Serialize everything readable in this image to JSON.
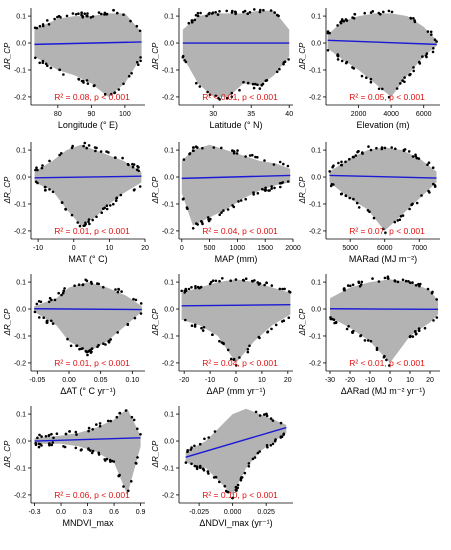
{
  "colors": {
    "cloud": "#b3b3b3",
    "points": "#000000",
    "fit": "#1a1ad6",
    "stats": "#e01010",
    "axis": "#000000"
  },
  "chart_data": [
    {
      "type": "scatter",
      "xlabel": "Longitude (° E)",
      "ylabel": "ΔR_CP",
      "xlim": [
        72,
        106
      ],
      "ylim": [
        -0.23,
        0.13
      ],
      "xticks": [
        "80",
        "90",
        "100"
      ],
      "xtick_values": [
        80,
        90,
        100
      ],
      "yticks": [
        "-0.2",
        "-0.1",
        "0.0",
        "0.1"
      ],
      "ytick_values": [
        -0.2,
        -0.1,
        0.0,
        0.1
      ],
      "fit_line": {
        "x": [
          73,
          105
        ],
        "y": [
          -0.005,
          0.004
        ]
      },
      "stat_r2": "R² = 0.08, p < 0.001",
      "envelope": {
        "x": [
          73,
          80,
          85,
          90,
          95,
          100,
          105
        ],
        "upper": [
          0.05,
          0.09,
          0.1,
          0.1,
          0.11,
          0.11,
          0.04
        ],
        "lower": [
          -0.05,
          -0.1,
          -0.12,
          -0.15,
          -0.2,
          -0.15,
          -0.05
        ]
      }
    },
    {
      "type": "scatter",
      "xlabel": "Latitude (° N)",
      "ylabel": "ΔR_CP",
      "xlim": [
        25.5,
        40.5
      ],
      "ylim": [
        -0.23,
        0.13
      ],
      "xticks": [
        "30",
        "35",
        "40"
      ],
      "xtick_values": [
        30,
        35,
        40
      ],
      "yticks": [
        "-0.2",
        "-0.1",
        "0.0",
        "0.1"
      ],
      "ytick_values": [
        -0.2,
        -0.1,
        0.0,
        0.1
      ],
      "fit_line": {
        "x": [
          26,
          40
        ],
        "y": [
          0.0,
          0.0
        ]
      },
      "stat_r2": "R² < 0.01, p < 0.001",
      "envelope": {
        "x": [
          26,
          28,
          30,
          32,
          34,
          36,
          38,
          40
        ],
        "upper": [
          0.05,
          0.1,
          0.11,
          0.11,
          0.11,
          0.12,
          0.12,
          0.05
        ],
        "lower": [
          -0.05,
          -0.15,
          -0.2,
          -0.2,
          -0.15,
          -0.16,
          -0.12,
          -0.05
        ]
      }
    },
    {
      "type": "scatter",
      "xlabel": "Elevation (m)",
      "ylabel": "ΔR_CP",
      "xlim": [
        0,
        7000
      ],
      "ylim": [
        -0.23,
        0.13
      ],
      "xticks": [
        "2000",
        "4000",
        "6000"
      ],
      "xtick_values": [
        2000,
        4000,
        6000
      ],
      "yticks": [
        "-0.2",
        "-0.1",
        "0.0",
        "0.1"
      ],
      "ytick_values": [
        -0.2,
        -0.1,
        0.0,
        0.1
      ],
      "fit_line": {
        "x": [
          100,
          6800
        ],
        "y": [
          0.01,
          -0.005
        ]
      },
      "stat_r2": "R² = 0.05, p < 0.001",
      "envelope": {
        "x": [
          100,
          1000,
          2000,
          3000,
          4000,
          5000,
          6000,
          6800
        ],
        "upper": [
          0.03,
          0.08,
          0.1,
          0.11,
          0.11,
          0.1,
          0.06,
          0.01
        ],
        "lower": [
          -0.02,
          -0.06,
          -0.1,
          -0.15,
          -0.2,
          -0.12,
          -0.05,
          -0.01
        ]
      }
    },
    {
      "type": "scatter",
      "xlabel": "MAT (° C)",
      "ylabel": "ΔR_CP",
      "xlim": [
        -12,
        20
      ],
      "ylim": [
        -0.23,
        0.13
      ],
      "xticks": [
        "-10",
        "0",
        "10",
        "20"
      ],
      "xtick_values": [
        -10,
        0,
        10,
        20
      ],
      "yticks": [
        "-0.2",
        "-0.1",
        "0.0",
        "0.1"
      ],
      "ytick_values": [
        -0.2,
        -0.1,
        0.0,
        0.1
      ],
      "fit_line": {
        "x": [
          -11,
          19
        ],
        "y": [
          -0.003,
          0.003
        ]
      },
      "stat_r2": "R² = 0.01, p < 0.001",
      "envelope": {
        "x": [
          -11,
          -6,
          -2,
          2,
          6,
          10,
          14,
          19
        ],
        "upper": [
          0.02,
          0.06,
          0.1,
          0.12,
          0.1,
          0.08,
          0.06,
          0.02
        ],
        "lower": [
          -0.02,
          -0.05,
          -0.12,
          -0.18,
          -0.15,
          -0.1,
          -0.06,
          -0.02
        ]
      }
    },
    {
      "type": "scatter",
      "xlabel": "MAP (mm)",
      "ylabel": "ΔR_CP",
      "xlim": [
        -50,
        2000
      ],
      "ylim": [
        -0.23,
        0.13
      ],
      "xticks": [
        "0",
        "500",
        "1000",
        "1500",
        "2000"
      ],
      "xtick_values": [
        0,
        500,
        1000,
        1500,
        2000
      ],
      "yticks": [
        "-0.2",
        "-0.1",
        "0.0",
        "0.1"
      ],
      "ytick_values": [
        -0.2,
        -0.1,
        0.0,
        0.1
      ],
      "fit_line": {
        "x": [
          0,
          1950
        ],
        "y": [
          -0.005,
          0.006
        ]
      },
      "stat_r2": "R² = 0.04, p < 0.001",
      "envelope": {
        "x": [
          0,
          200,
          500,
          800,
          1100,
          1400,
          1700,
          1950
        ],
        "upper": [
          0.06,
          0.1,
          0.12,
          0.1,
          0.08,
          0.06,
          0.05,
          0.03
        ],
        "lower": [
          -0.06,
          -0.18,
          -0.15,
          -0.12,
          -0.08,
          -0.05,
          -0.03,
          -0.02
        ]
      }
    },
    {
      "type": "scatter",
      "xlabel": "MARad (MJ m⁻²)",
      "ylabel": "ΔR_CP",
      "xlim": [
        4300,
        7600
      ],
      "ylim": [
        -0.23,
        0.13
      ],
      "xticks": [
        "5000",
        "6000",
        "7000"
      ],
      "xtick_values": [
        5000,
        6000,
        7000
      ],
      "yticks": [
        "-0.2",
        "-0.1",
        "0.0",
        "0.1"
      ],
      "ytick_values": [
        -0.2,
        -0.1,
        0.0,
        0.1
      ],
      "fit_line": {
        "x": [
          4400,
          7500
        ],
        "y": [
          0.006,
          -0.004
        ]
      },
      "stat_r2": "R² = 0.07, p < 0.001",
      "envelope": {
        "x": [
          4400,
          5000,
          5500,
          6000,
          6500,
          7000,
          7500
        ],
        "upper": [
          0.02,
          0.07,
          0.1,
          0.11,
          0.1,
          0.07,
          0.02
        ],
        "lower": [
          -0.02,
          -0.08,
          -0.12,
          -0.2,
          -0.14,
          -0.08,
          -0.02
        ]
      }
    },
    {
      "type": "scatter",
      "xlabel": "ΔAT (° C yr⁻¹)",
      "ylabel": "ΔR_CP",
      "xlim": [
        -0.06,
        0.12
      ],
      "ylim": [
        -0.23,
        0.13
      ],
      "xticks": [
        "-0.05",
        "0.00",
        "0.05",
        "0.10"
      ],
      "xtick_values": [
        -0.05,
        0.0,
        0.05,
        0.1
      ],
      "yticks": [
        "-0.2",
        "-0.1",
        "0.0",
        "0.1"
      ],
      "ytick_values": [
        -0.2,
        -0.1,
        0.0,
        0.1
      ],
      "fit_line": {
        "x": [
          -0.055,
          0.115
        ],
        "y": [
          0.001,
          -0.002
        ]
      },
      "stat_r2": "R² = 0.01, p < 0.001",
      "envelope": {
        "x": [
          -0.055,
          -0.02,
          0.0,
          0.03,
          0.06,
          0.09,
          0.115
        ],
        "upper": [
          0.01,
          0.04,
          0.08,
          0.1,
          0.08,
          0.05,
          0.01
        ],
        "lower": [
          -0.01,
          -0.06,
          -0.12,
          -0.16,
          -0.12,
          -0.06,
          -0.01
        ]
      }
    },
    {
      "type": "scatter",
      "xlabel": "ΔAP (mm yr⁻¹)",
      "ylabel": "ΔR_CP",
      "xlim": [
        -22,
        22
      ],
      "ylim": [
        -0.23,
        0.13
      ],
      "xticks": [
        "-20",
        "-10",
        "0",
        "10",
        "20"
      ],
      "xtick_values": [
        -20,
        -10,
        0,
        10,
        20
      ],
      "yticks": [
        "-0.2",
        "-0.1",
        "0.0",
        "0.1"
      ],
      "ytick_values": [
        -0.2,
        -0.1,
        0.0,
        0.1
      ],
      "fit_line": {
        "x": [
          -21,
          21
        ],
        "y": [
          0.012,
          0.016
        ]
      },
      "stat_r2": "R² = 0.04, p < 0.001",
      "envelope": {
        "x": [
          -21,
          -14,
          -7,
          0,
          7,
          14,
          21
        ],
        "upper": [
          0.06,
          0.08,
          0.1,
          0.11,
          0.1,
          0.08,
          0.06
        ],
        "lower": [
          -0.04,
          -0.06,
          -0.1,
          -0.2,
          -0.12,
          -0.06,
          -0.02
        ]
      }
    },
    {
      "type": "scatter",
      "xlabel": "ΔARad (MJ m⁻² yr⁻¹)",
      "ylabel": "ΔR_CP",
      "xlim": [
        -32,
        25
      ],
      "ylim": [
        -0.23,
        0.13
      ],
      "xticks": [
        "-30",
        "-20",
        "-10",
        "0",
        "10",
        "20"
      ],
      "xtick_values": [
        -30,
        -20,
        -10,
        0,
        10,
        20
      ],
      "yticks": [
        "-0.2",
        "-0.1",
        "0.0",
        "0.1"
      ],
      "ytick_values": [
        -0.2,
        -0.1,
        0.0,
        0.1
      ],
      "fit_line": {
        "x": [
          -30,
          24
        ],
        "y": [
          0.001,
          -0.001
        ]
      },
      "stat_r2": "R² < 0.01, p < 0.001",
      "envelope": {
        "x": [
          -30,
          -20,
          -10,
          0,
          10,
          20,
          24
        ],
        "upper": [
          0.04,
          0.08,
          0.1,
          0.11,
          0.1,
          0.07,
          0.03
        ],
        "lower": [
          -0.03,
          -0.07,
          -0.12,
          -0.2,
          -0.1,
          -0.05,
          -0.02
        ]
      }
    },
    {
      "type": "scatter",
      "xlabel": "MNDVI_max",
      "ylabel": "ΔR_CP",
      "xlim": [
        -0.34,
        0.95
      ],
      "ylim": [
        -0.23,
        0.13
      ],
      "xticks": [
        "-0.3",
        "0.0",
        "0.3",
        "0.6",
        "0.9"
      ],
      "xtick_values": [
        -0.3,
        0.0,
        0.3,
        0.6,
        0.9
      ],
      "yticks": [
        "-0.2",
        "-0.1",
        "0.0",
        "0.1"
      ],
      "ytick_values": [
        -0.2,
        -0.1,
        0.0,
        0.1
      ],
      "fit_line": {
        "x": [
          -0.3,
          0.9
        ],
        "y": [
          0.0,
          0.012
        ]
      },
      "stat_r2": "R² = 0.06, p < 0.001",
      "envelope": {
        "x": [
          -0.3,
          0.0,
          0.2,
          0.4,
          0.6,
          0.75,
          0.9
        ],
        "upper": [
          0.01,
          0.02,
          0.03,
          0.05,
          0.08,
          0.12,
          0.02
        ],
        "lower": [
          -0.01,
          -0.01,
          -0.02,
          -0.04,
          -0.08,
          -0.2,
          -0.02
        ]
      }
    },
    {
      "type": "scatter",
      "xlabel": "ΔNDVI_max (yr⁻¹)",
      "ylabel": "ΔR_CP",
      "xlim": [
        -0.04,
        0.045
      ],
      "ylim": [
        -0.23,
        0.13
      ],
      "xticks": [
        "-0.025",
        "0.000",
        "0.025"
      ],
      "xtick_values": [
        -0.025,
        0.0,
        0.025
      ],
      "yticks": [
        "-0.2",
        "-0.1",
        "0.0",
        "0.1"
      ],
      "ytick_values": [
        -0.2,
        -0.1,
        0.0,
        0.1
      ],
      "fit_line": {
        "x": [
          -0.035,
          0.04
        ],
        "y": [
          -0.06,
          0.05
        ]
      },
      "stat_r2": "R² = 0.10, p < 0.001",
      "envelope": {
        "x": [
          -0.035,
          -0.02,
          -0.01,
          0.0,
          0.01,
          0.02,
          0.04
        ],
        "upper": [
          -0.04,
          0.0,
          0.05,
          0.1,
          0.12,
          0.1,
          0.06
        ],
        "lower": [
          -0.08,
          -0.1,
          -0.15,
          -0.2,
          -0.1,
          -0.04,
          0.03
        ]
      }
    }
  ]
}
